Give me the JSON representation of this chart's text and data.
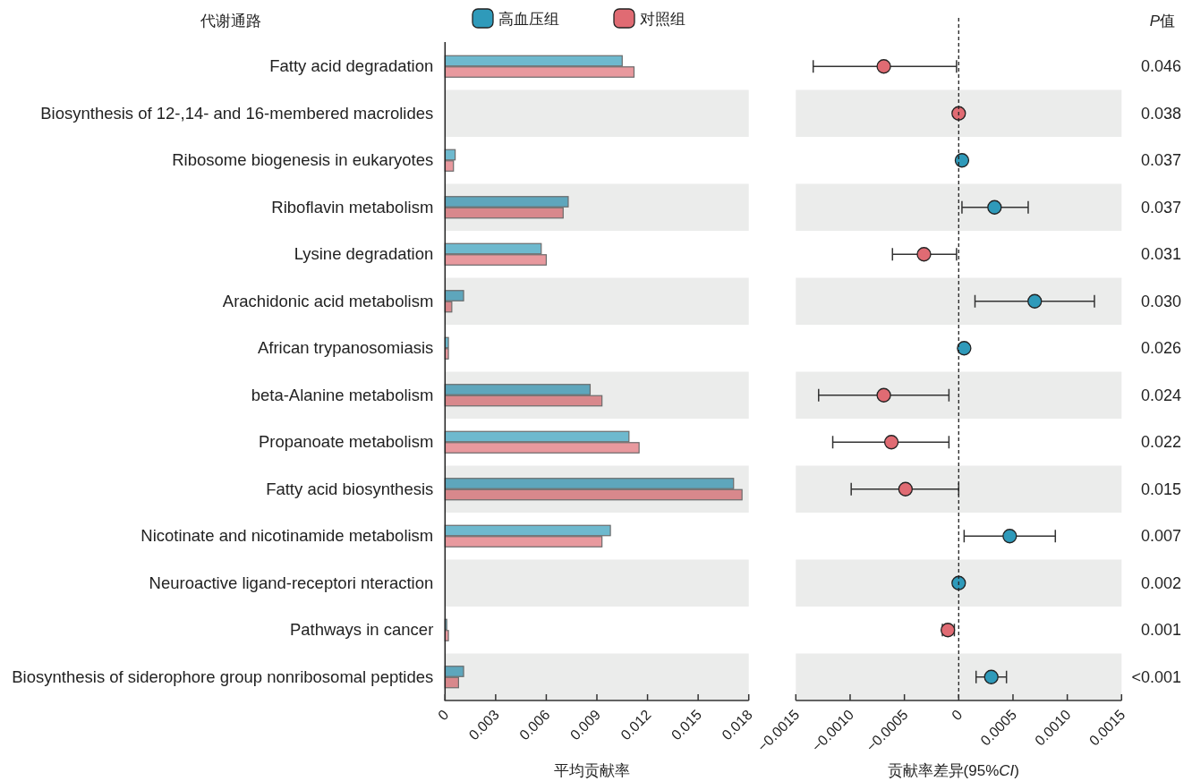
{
  "chart_data": [
    {
      "type": "bar",
      "orientation": "horizontal",
      "ylabel": "代谢通路",
      "xlabel": "平均贡献率",
      "legend": "top",
      "categories": [
        "Fatty acid degradation",
        "Biosynthesis of 12-,14- and 16-membered macrolides",
        "Ribosome biogenesis in eukaryotes",
        "Riboflavin metabolism",
        "Lysine degradation",
        "Arachidonic acid metabolism",
        "African trypanosomiasis",
        "beta-Alanine metabolism",
        "Propanoate metabolism",
        "Fatty acid biosynthesis",
        "Nicotinate and nicotinamide metabolism",
        "Neuroactive ligand-receptori nteraction",
        "Pathways in cancer",
        "Biosynthesis of siderophore group nonribosomal peptides"
      ],
      "series": [
        {
          "name": "高血压组",
          "color": "#2f9aba",
          "colors": [
            "#6eb9ce",
            "#5ea6bc",
            "#6eb9ce",
            "#5ea6bc",
            "#6eb9ce",
            "#5ea6bc",
            "#6eb9ce",
            "#5ea6bc",
            "#6eb9ce",
            "#5ea6bc",
            "#6eb9ce",
            "#5ea6bc",
            "#6eb9ce",
            "#5ea6bc"
          ],
          "values": [
            0.0105,
            0,
            0.0006,
            0.0073,
            0.0057,
            0.0011,
            0.0002,
            0.0086,
            0.0109,
            0.0171,
            0.0098,
            0,
            0.0001,
            0.0011
          ]
        },
        {
          "name": "对照组",
          "color": "#e06b73",
          "colors": [
            "#e8999e",
            "#d8888c",
            "#e8999e",
            "#d8888c",
            "#e8999e",
            "#d8888c",
            "#e8999e",
            "#d8888c",
            "#e8999e",
            "#d8888c",
            "#e8999e",
            "#d8888c",
            "#e8999e",
            "#d8888c"
          ],
          "values": [
            0.0112,
            0,
            0.0005,
            0.007,
            0.006,
            0.0004,
            0.0002,
            0.0093,
            0.0115,
            0.0176,
            0.0093,
            0,
            0.0002,
            0.0008
          ]
        }
      ],
      "xlim": [
        0,
        0.018
      ],
      "xticks": [
        0,
        0.003,
        0.006,
        0.009,
        0.012,
        0.015,
        0.018
      ],
      "bands": [
        {
          "axis": "y",
          "from": "Biosynthesis of 12-,14- and 16-membered macrolides",
          "to": "Biosynthesis of 12-,14- and 16-membered macrolides",
          "color": "#ebeceb"
        },
        {
          "axis": "y",
          "from": "Riboflavin metabolism",
          "to": "Riboflavin metabolism",
          "color": "#ebeceb"
        },
        {
          "axis": "y",
          "from": "Arachidonic acid metabolism",
          "to": "Arachidonic acid metabolism",
          "color": "#ebeceb"
        },
        {
          "axis": "y",
          "from": "beta-Alanine metabolism",
          "to": "beta-Alanine metabolism",
          "color": "#ebeceb"
        },
        {
          "axis": "y",
          "from": "Fatty acid biosynthesis",
          "to": "Fatty acid biosynthesis",
          "color": "#ebeceb"
        },
        {
          "axis": "y",
          "from": "Neuroactive ligand-receptori nteraction",
          "to": "Neuroactive ligand-receptori nteraction",
          "color": "#ebeceb"
        },
        {
          "axis": "y",
          "from": "Biosynthesis of siderophore group nonribosomal peptides",
          "to": "Biosynthesis of siderophore group nonribosomal peptides",
          "color": "#ebeceb"
        }
      ]
    },
    {
      "type": "scatter",
      "orientation": "horizontal",
      "xlabel": "贡献率差异(95%*CI*)",
      "marker": "circle",
      "tick_labels": "x",
      "categories": [
        "Fatty acid degradation",
        "Biosynthesis of 12-,14- and 16-membered macrolides",
        "Ribosome biogenesis in eukaryotes",
        "Riboflavin metabolism",
        "Lysine degradation",
        "Arachidonic acid metabolism",
        "African trypanosomiasis",
        "beta-Alanine metabolism",
        "Propanoate metabolism",
        "Fatty acid biosynthesis",
        "Nicotinate and nicotinamide metabolism",
        "Neuroactive ligand-receptori nteraction",
        "Pathways in cancer",
        "Biosynthesis of siderophore group nonribosomal peptides"
      ],
      "values": [
        -0.00069,
        0,
        3e-05,
        0.00033,
        -0.00032,
        0.0007,
        5e-05,
        -0.00069,
        -0.00062,
        -0.00049,
        0.00047,
        0,
        -0.0001,
        0.0003
      ],
      "errors": [
        [
          -0.00134,
          -2e-05
        ],
        null,
        null,
        [
          3e-05,
          0.00064
        ],
        [
          -0.00061,
          -2e-05
        ],
        [
          0.00015,
          0.00125
        ],
        null,
        [
          -0.00129,
          -9e-05
        ],
        [
          -0.00116,
          -9e-05
        ],
        [
          -0.00099,
          0
        ],
        [
          5e-05,
          0.00089
        ],
        null,
        [
          -0.00015,
          -4e-05
        ],
        [
          0.00016,
          0.00044
        ]
      ],
      "colors": [
        "#e06b73",
        "#e06b73",
        "#2f9aba",
        "#2f9aba",
        "#e06b73",
        "#2f9aba",
        "#2f9aba",
        "#e06b73",
        "#e06b73",
        "#e06b73",
        "#2f9aba",
        "#2f9aba",
        "#e06b73",
        "#2f9aba"
      ],
      "xlim": [
        -0.0015,
        0.0015
      ],
      "xticks": [
        {
          "value": -0.0015,
          "label": "−0.0015"
        },
        {
          "value": -0.001,
          "label": "−0.0010"
        },
        {
          "value": -0.0005,
          "label": "−0.0005"
        },
        0,
        0.0005,
        {
          "value": 0.001,
          "label": "0.0010"
        },
        0.0015
      ],
      "ref_lines": [
        {
          "axis": "x",
          "value": 0,
          "line_style": "dashed",
          "color": "#222222"
        }
      ],
      "bands": [
        {
          "axis": "y",
          "from": "Biosynthesis of 12-,14- and 16-membered macrolides",
          "to": "Biosynthesis of 12-,14- and 16-membered macrolides",
          "color": "#ebeceb"
        },
        {
          "axis": "y",
          "from": "Riboflavin metabolism",
          "to": "Riboflavin metabolism",
          "color": "#ebeceb"
        },
        {
          "axis": "y",
          "from": "Arachidonic acid metabolism",
          "to": "Arachidonic acid metabolism",
          "color": "#ebeceb"
        },
        {
          "axis": "y",
          "from": "beta-Alanine metabolism",
          "to": "beta-Alanine metabolism",
          "color": "#ebeceb"
        },
        {
          "axis": "y",
          "from": "Fatty acid biosynthesis",
          "to": "Fatty acid biosynthesis",
          "color": "#ebeceb"
        },
        {
          "axis": "y",
          "from": "Neuroactive ligand-receptori nteraction",
          "to": "Neuroactive ligand-receptori nteraction",
          "color": "#ebeceb"
        },
        {
          "axis": "y",
          "from": "Biosynthesis of siderophore group nonribosomal peptides",
          "to": "Biosynthesis of siderophore group nonribosomal peptides",
          "color": "#ebeceb"
        }
      ],
      "annotations": [
        "*P值*",
        "0.046",
        "0.038",
        "0.037",
        "0.037",
        "0.031",
        "0.030",
        "0.026",
        "0.024",
        "0.022",
        "0.015",
        "0.007",
        "0.002",
        "0.001",
        "<0.001"
      ]
    }
  ]
}
